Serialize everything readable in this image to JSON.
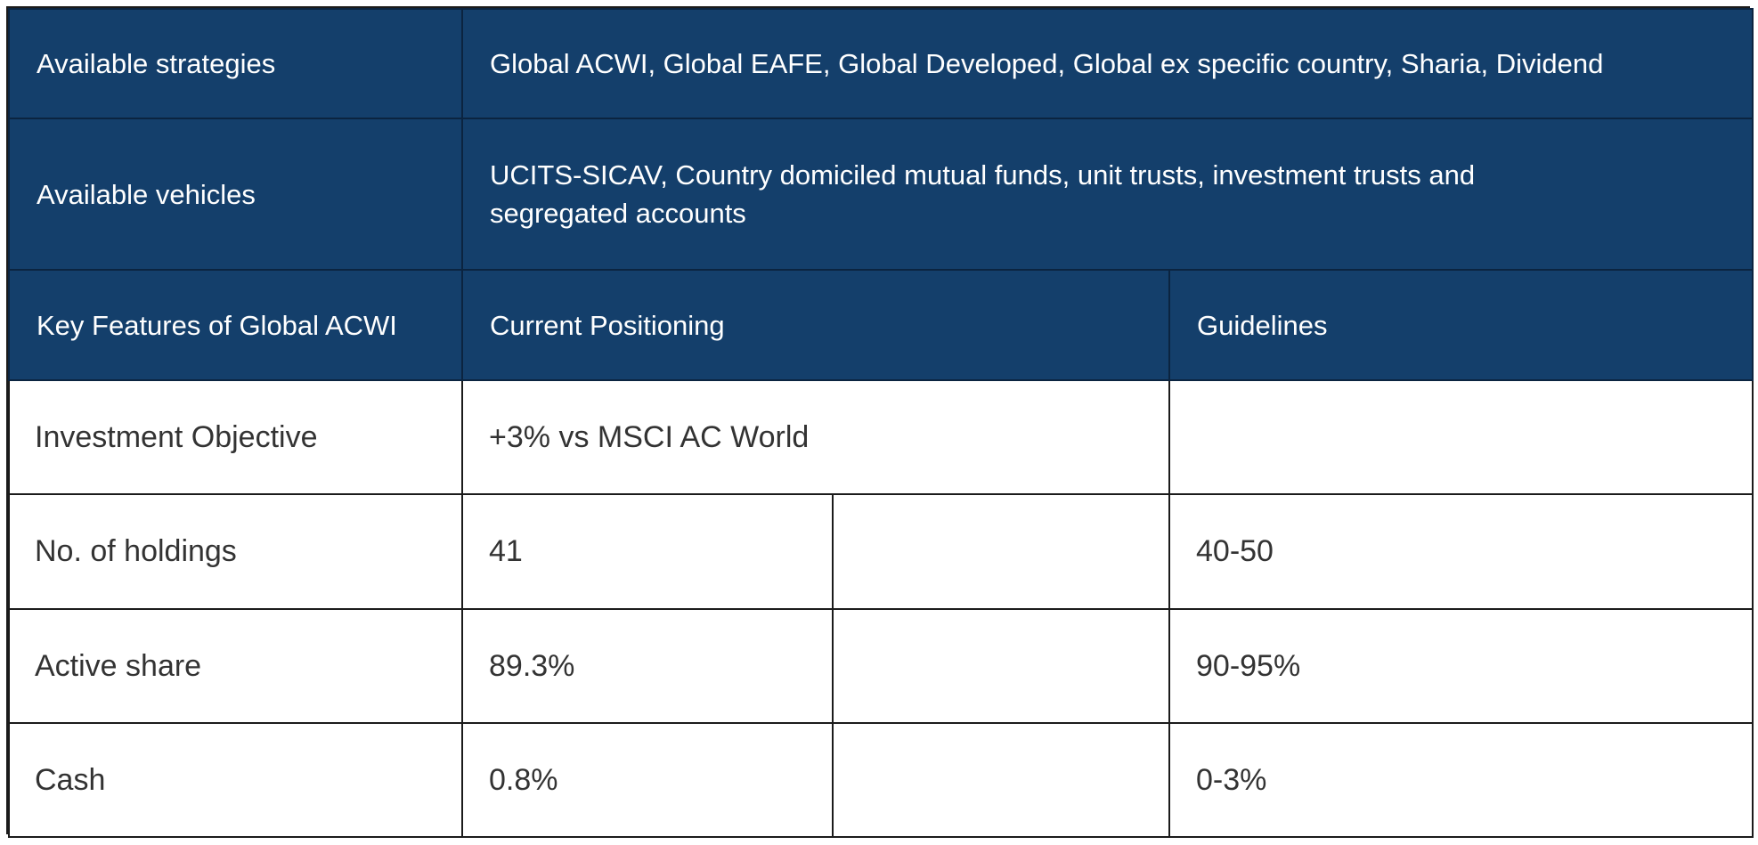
{
  "table": {
    "strategies": {
      "label": "Available strategies",
      "value": "Global ACWI, Global EAFE, Global Developed, Global ex specific country, Sharia, Dividend"
    },
    "vehicles": {
      "label": "Available vehicles",
      "value": "UCITS-SICAV, Country domiciled mutual funds, unit trusts, investment trusts and segregated accounts"
    },
    "header": {
      "features": "Key Features of Global ACWI",
      "current": "Current Positioning",
      "guidelines": "Guidelines"
    },
    "objective": {
      "label": "Investment Objective",
      "current": "+3% vs MSCI AC World",
      "guideline": ""
    },
    "rows": [
      {
        "label": "No. of holdings",
        "current": "41",
        "guideline": "40-50"
      },
      {
        "label": "Active share",
        "current": "89.3%",
        "guideline": "90-95%"
      },
      {
        "label": "Cash",
        "current": "0.8%",
        "guideline": "0-3%"
      }
    ]
  }
}
